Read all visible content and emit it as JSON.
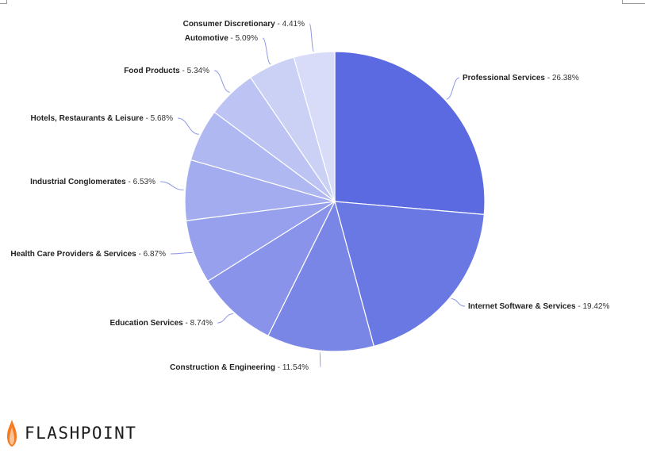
{
  "chart_data": {
    "type": "pie",
    "start_angle_deg": 0,
    "direction": "clockwise",
    "slices": [
      {
        "label": "Professional Services",
        "value": 26.38,
        "display": "26.38%",
        "color": "#5b6ae0"
      },
      {
        "label": "Internet Software & Services",
        "value": 19.42,
        "display": "19.42%",
        "color": "#6a78e4"
      },
      {
        "label": "Construction & Engineering",
        "value": 11.54,
        "display": "11.54%",
        "color": "#7a86e6"
      },
      {
        "label": "Education Services",
        "value": 8.74,
        "display": "8.74%",
        "color": "#8893e9"
      },
      {
        "label": "Health Care Providers & Services",
        "value": 6.87,
        "display": "6.87%",
        "color": "#96a0ec"
      },
      {
        "label": "Industrial Conglomerates",
        "value": 6.53,
        "display": "6.53%",
        "color": "#a3acef"
      },
      {
        "label": "Hotels, Restaurants & Leisure",
        "value": 5.68,
        "display": "5.68%",
        "color": "#b0b8f1"
      },
      {
        "label": "Food Products",
        "value": 5.34,
        "display": "5.34%",
        "color": "#bdc4f3"
      },
      {
        "label": "Automotive",
        "value": 5.09,
        "display": "5.09%",
        "color": "#cbd0f5"
      },
      {
        "label": "Consumer Discretionary",
        "value": 4.41,
        "display": "4.41%",
        "color": "#d8dcf8"
      }
    ],
    "label_separator": " - ",
    "leader_color": "#8e98e6"
  },
  "logo": {
    "text": "FLASHPOINT",
    "icon": "flame-icon",
    "flame_color": "#f47c20"
  }
}
